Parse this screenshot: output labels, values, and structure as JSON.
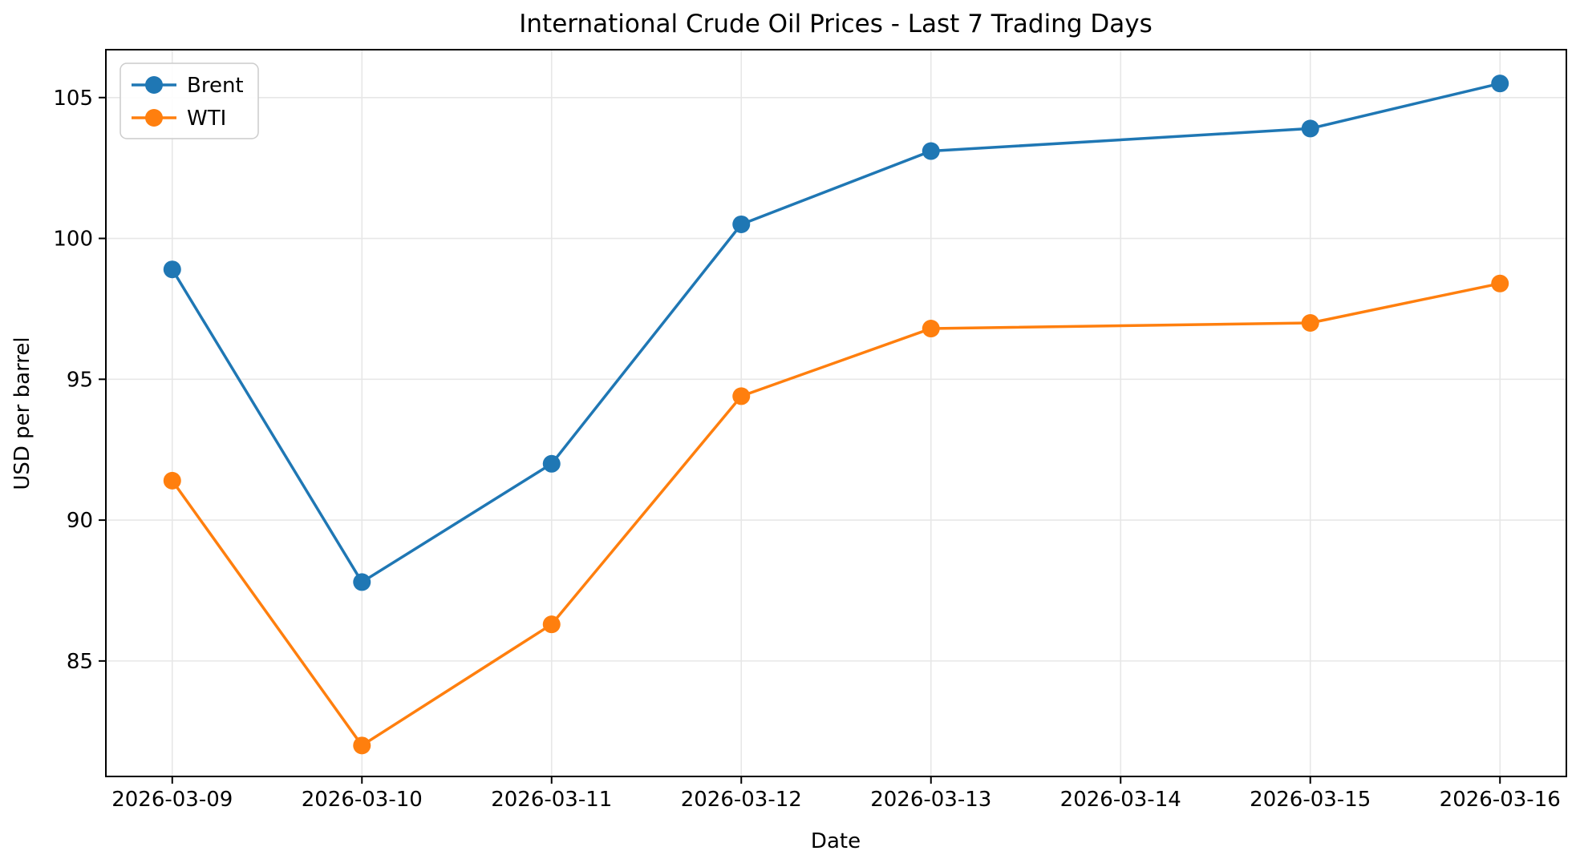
{
  "chart_data": {
    "type": "line",
    "title": "International Crude Oil Prices - Last 7 Trading Days",
    "xlabel": "Date",
    "ylabel": "USD per barrel",
    "x_tick_labels": [
      "2026-03-09",
      "2026-03-10",
      "2026-03-11",
      "2026-03-12",
      "2026-03-13",
      "2026-03-14",
      "2026-03-15",
      "2026-03-16"
    ],
    "x_tick_offsets": [
      0,
      1,
      2,
      3,
      4,
      5,
      6,
      7
    ],
    "y_ticks": [
      85,
      90,
      95,
      100,
      105
    ],
    "ylim": [
      80.9,
      106.7
    ],
    "xlim_day_offsets": [
      -0.35,
      7.35
    ],
    "grid": true,
    "legend_position": "upper left",
    "categories": [
      "2026-03-09",
      "2026-03-10",
      "2026-03-11",
      "2026-03-12",
      "2026-03-13",
      "2026-03-15",
      "2026-03-16"
    ],
    "x_day_offsets": [
      0,
      1,
      2,
      3,
      4,
      6,
      7
    ],
    "series": [
      {
        "name": "Brent",
        "color": "#1f77b4",
        "values": [
          98.9,
          87.8,
          92.0,
          100.5,
          103.1,
          103.9,
          105.5
        ]
      },
      {
        "name": "WTI",
        "color": "#ff7f0e",
        "values": [
          91.4,
          82.0,
          86.3,
          94.4,
          96.8,
          97.0,
          98.4
        ]
      }
    ]
  }
}
